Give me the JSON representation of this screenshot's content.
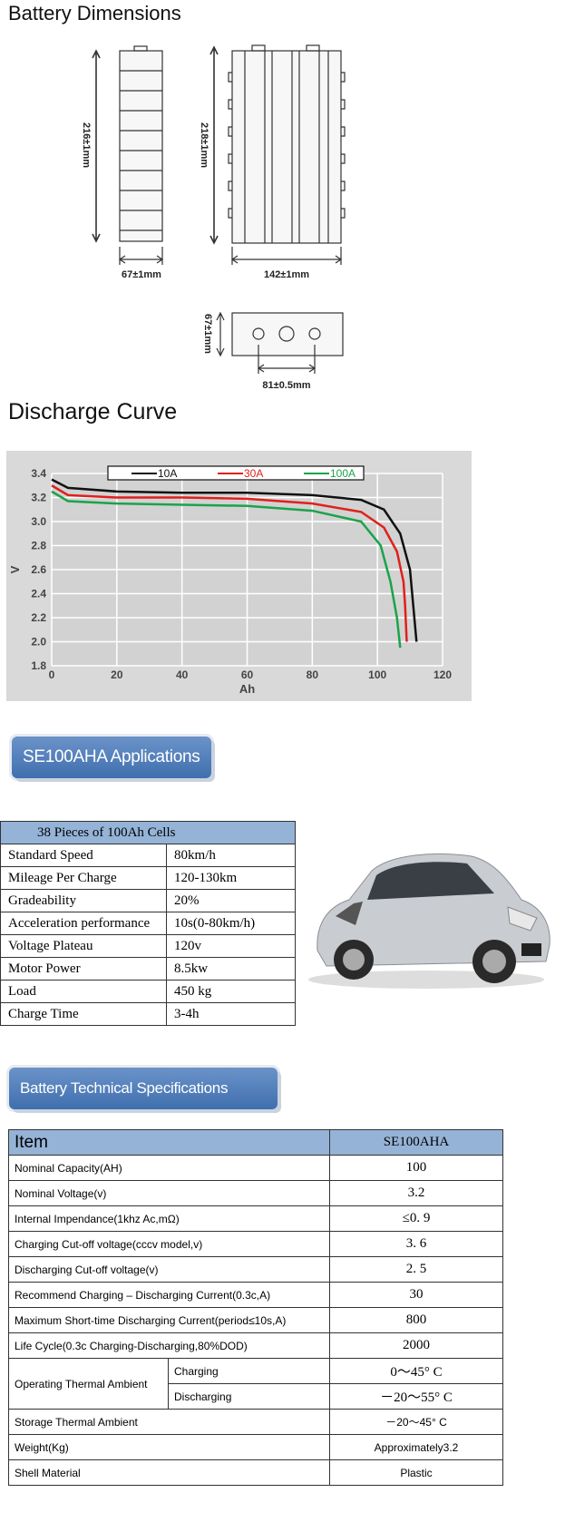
{
  "dimensions": {
    "title": "Battery Dimensions",
    "labels": [
      "216±1mm",
      "218±1mm",
      "67±1mm",
      "142±1mm",
      "67±1mm",
      "81±0.5mm"
    ]
  },
  "discharge": {
    "title": "Discharge Curve",
    "type": "line",
    "x_label": "Ah",
    "y_label": "V",
    "xlim": [
      0,
      120
    ],
    "xticks": [
      0,
      20,
      40,
      60,
      80,
      100,
      120
    ],
    "ylim": [
      1.8,
      3.4
    ],
    "yticks": [
      3.4,
      3.2,
      {
        "value": 3,
        "label": "3.0"
      },
      2.8,
      2.6,
      2.4,
      2.2,
      {
        "value": 2,
        "label": "2.0"
      },
      1.8
    ],
    "grid": true,
    "series": [
      {
        "name": "10A",
        "color": "#111111",
        "x": [
          0,
          5,
          20,
          40,
          60,
          80,
          95,
          102,
          107,
          110,
          111,
          112
        ],
        "values": [
          3.35,
          3.28,
          3.25,
          3.24,
          3.24,
          3.22,
          3.18,
          3.1,
          2.9,
          2.6,
          2.3,
          2.0
        ]
      },
      {
        "name": "30A",
        "color": "#e0201c",
        "x": [
          0,
          5,
          20,
          40,
          60,
          80,
          95,
          102,
          106,
          108,
          108.5,
          109
        ],
        "values": [
          3.3,
          3.22,
          3.2,
          3.2,
          3.19,
          3.15,
          3.08,
          2.95,
          2.75,
          2.5,
          2.3,
          2.0
        ]
      },
      {
        "name": "100A",
        "color": "#1aa34a",
        "x": [
          0,
          5,
          20,
          40,
          60,
          80,
          95,
          101,
          104,
          106,
          107
        ],
        "values": [
          3.25,
          3.17,
          3.15,
          3.14,
          3.13,
          3.09,
          3.0,
          2.8,
          2.5,
          2.2,
          1.95
        ]
      }
    ]
  },
  "applications": {
    "button": "SE100AHA  Applications",
    "table": {
      "header": "38 Pieces of 100Ah Cells",
      "rows": [
        [
          "Standard Speed",
          "80km/h"
        ],
        [
          "Mileage Per Charge",
          "120-130km"
        ],
        [
          "Gradeability",
          "20%"
        ],
        [
          "Acceleration performance",
          "10s(0-80km/h)"
        ],
        [
          "Voltage Plateau",
          "120v"
        ],
        [
          "Motor Power",
          "8.5kw"
        ],
        [
          "Load",
          "450 kg"
        ],
        [
          "Charge Time",
          "3-4h"
        ]
      ]
    }
  },
  "specifications": {
    "button": "Battery Technical Specifications",
    "table": {
      "header": [
        "Item",
        "SE100AHA"
      ],
      "rows": [
        {
          "item": "Nominal Capacity(AH)",
          "value": "100"
        },
        {
          "item": "Nominal Voltage(v)",
          "value": "3.2"
        },
        {
          "item": "Internal Impendance(1khz Ac,mΩ)",
          "value": "≤0. 9"
        },
        {
          "item": "Charging Cut-off voltage(cccv model,v)",
          "value": "3. 6"
        },
        {
          "item": "Discharging Cut-off voltage(v)",
          "value": "2. 5"
        },
        {
          "item": "Recommend Charging – Discharging Current(0.3c,A)",
          "value": "30"
        },
        {
          "item": "Maximum Short-time Discharging Current(period≤10s,A)",
          "value": "800"
        },
        {
          "item": "Life Cycle(0.3c Charging-Discharging,80%DOD)",
          "value": "2000"
        },
        {
          "item": "Operating Thermal Ambient",
          "sub": [
            {
              "item": "Charging",
              "value": "0～45° C"
            },
            {
              "item": "Discharging",
              "value": "－20～55° C"
            }
          ]
        },
        {
          "item": "Storage Thermal Ambient",
          "value": "－20～45° C"
        },
        {
          "item": "Weight(Kg)",
          "value": "Approximately3.2"
        },
        {
          "item": "Shell Material",
          "value": "Plastic"
        }
      ]
    }
  }
}
